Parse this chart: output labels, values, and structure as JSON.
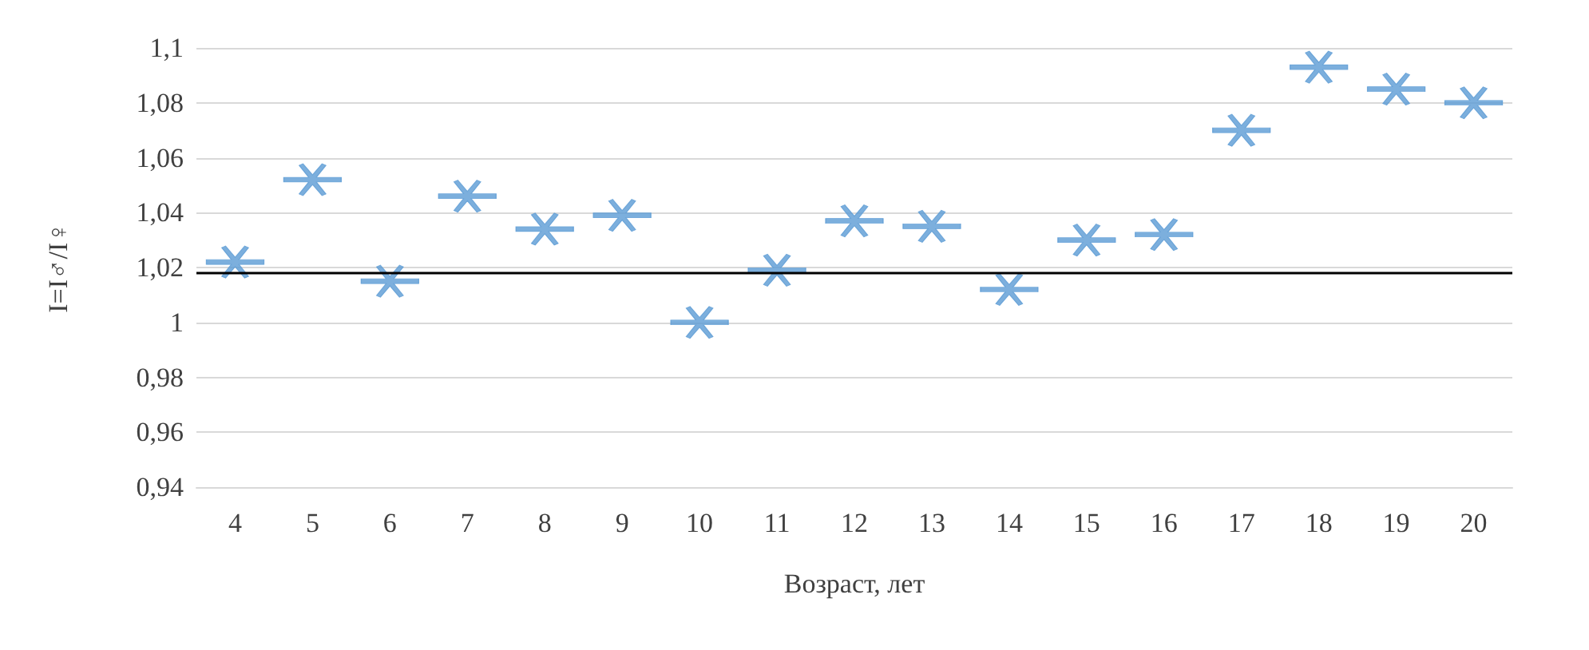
{
  "chart_data": {
    "type": "scatter",
    "xlabel": "Возраст, лет",
    "ylabel": "I=I♂/I♀",
    "categories": [
      "4",
      "5",
      "6",
      "7",
      "8",
      "9",
      "10",
      "11",
      "12",
      "13",
      "14",
      "15",
      "16",
      "17",
      "18",
      "19",
      "20"
    ],
    "series": [
      {
        "color": "#5b9bd5",
        "values": [
          1.022,
          1.052,
          1.015,
          1.046,
          1.034,
          1.039,
          1.0,
          1.019,
          1.037,
          1.035,
          1.012,
          1.03,
          1.032,
          1.07,
          1.093,
          1.085,
          1.08
        ]
      }
    ],
    "ylim": [
      0.94,
      1.1
    ],
    "yticks": [
      {
        "value": 0.94,
        "label": "0,94"
      },
      {
        "value": 0.96,
        "label": "0,96"
      },
      {
        "value": 0.98,
        "label": "0,98"
      },
      {
        "value": 1,
        "label": "1"
      },
      {
        "value": 1.02,
        "label": "1,02"
      },
      {
        "value": 1.04,
        "label": "1,04"
      },
      {
        "value": 1.06,
        "label": "1,06"
      },
      {
        "value": 1.08,
        "label": "1,08"
      },
      {
        "value": 1.1,
        "label": "1,1"
      }
    ],
    "ref_lines": [
      {
        "axis": "y",
        "value": 1.018,
        "color": "#000000"
      }
    ],
    "grid": "y",
    "marker": "cross"
  }
}
